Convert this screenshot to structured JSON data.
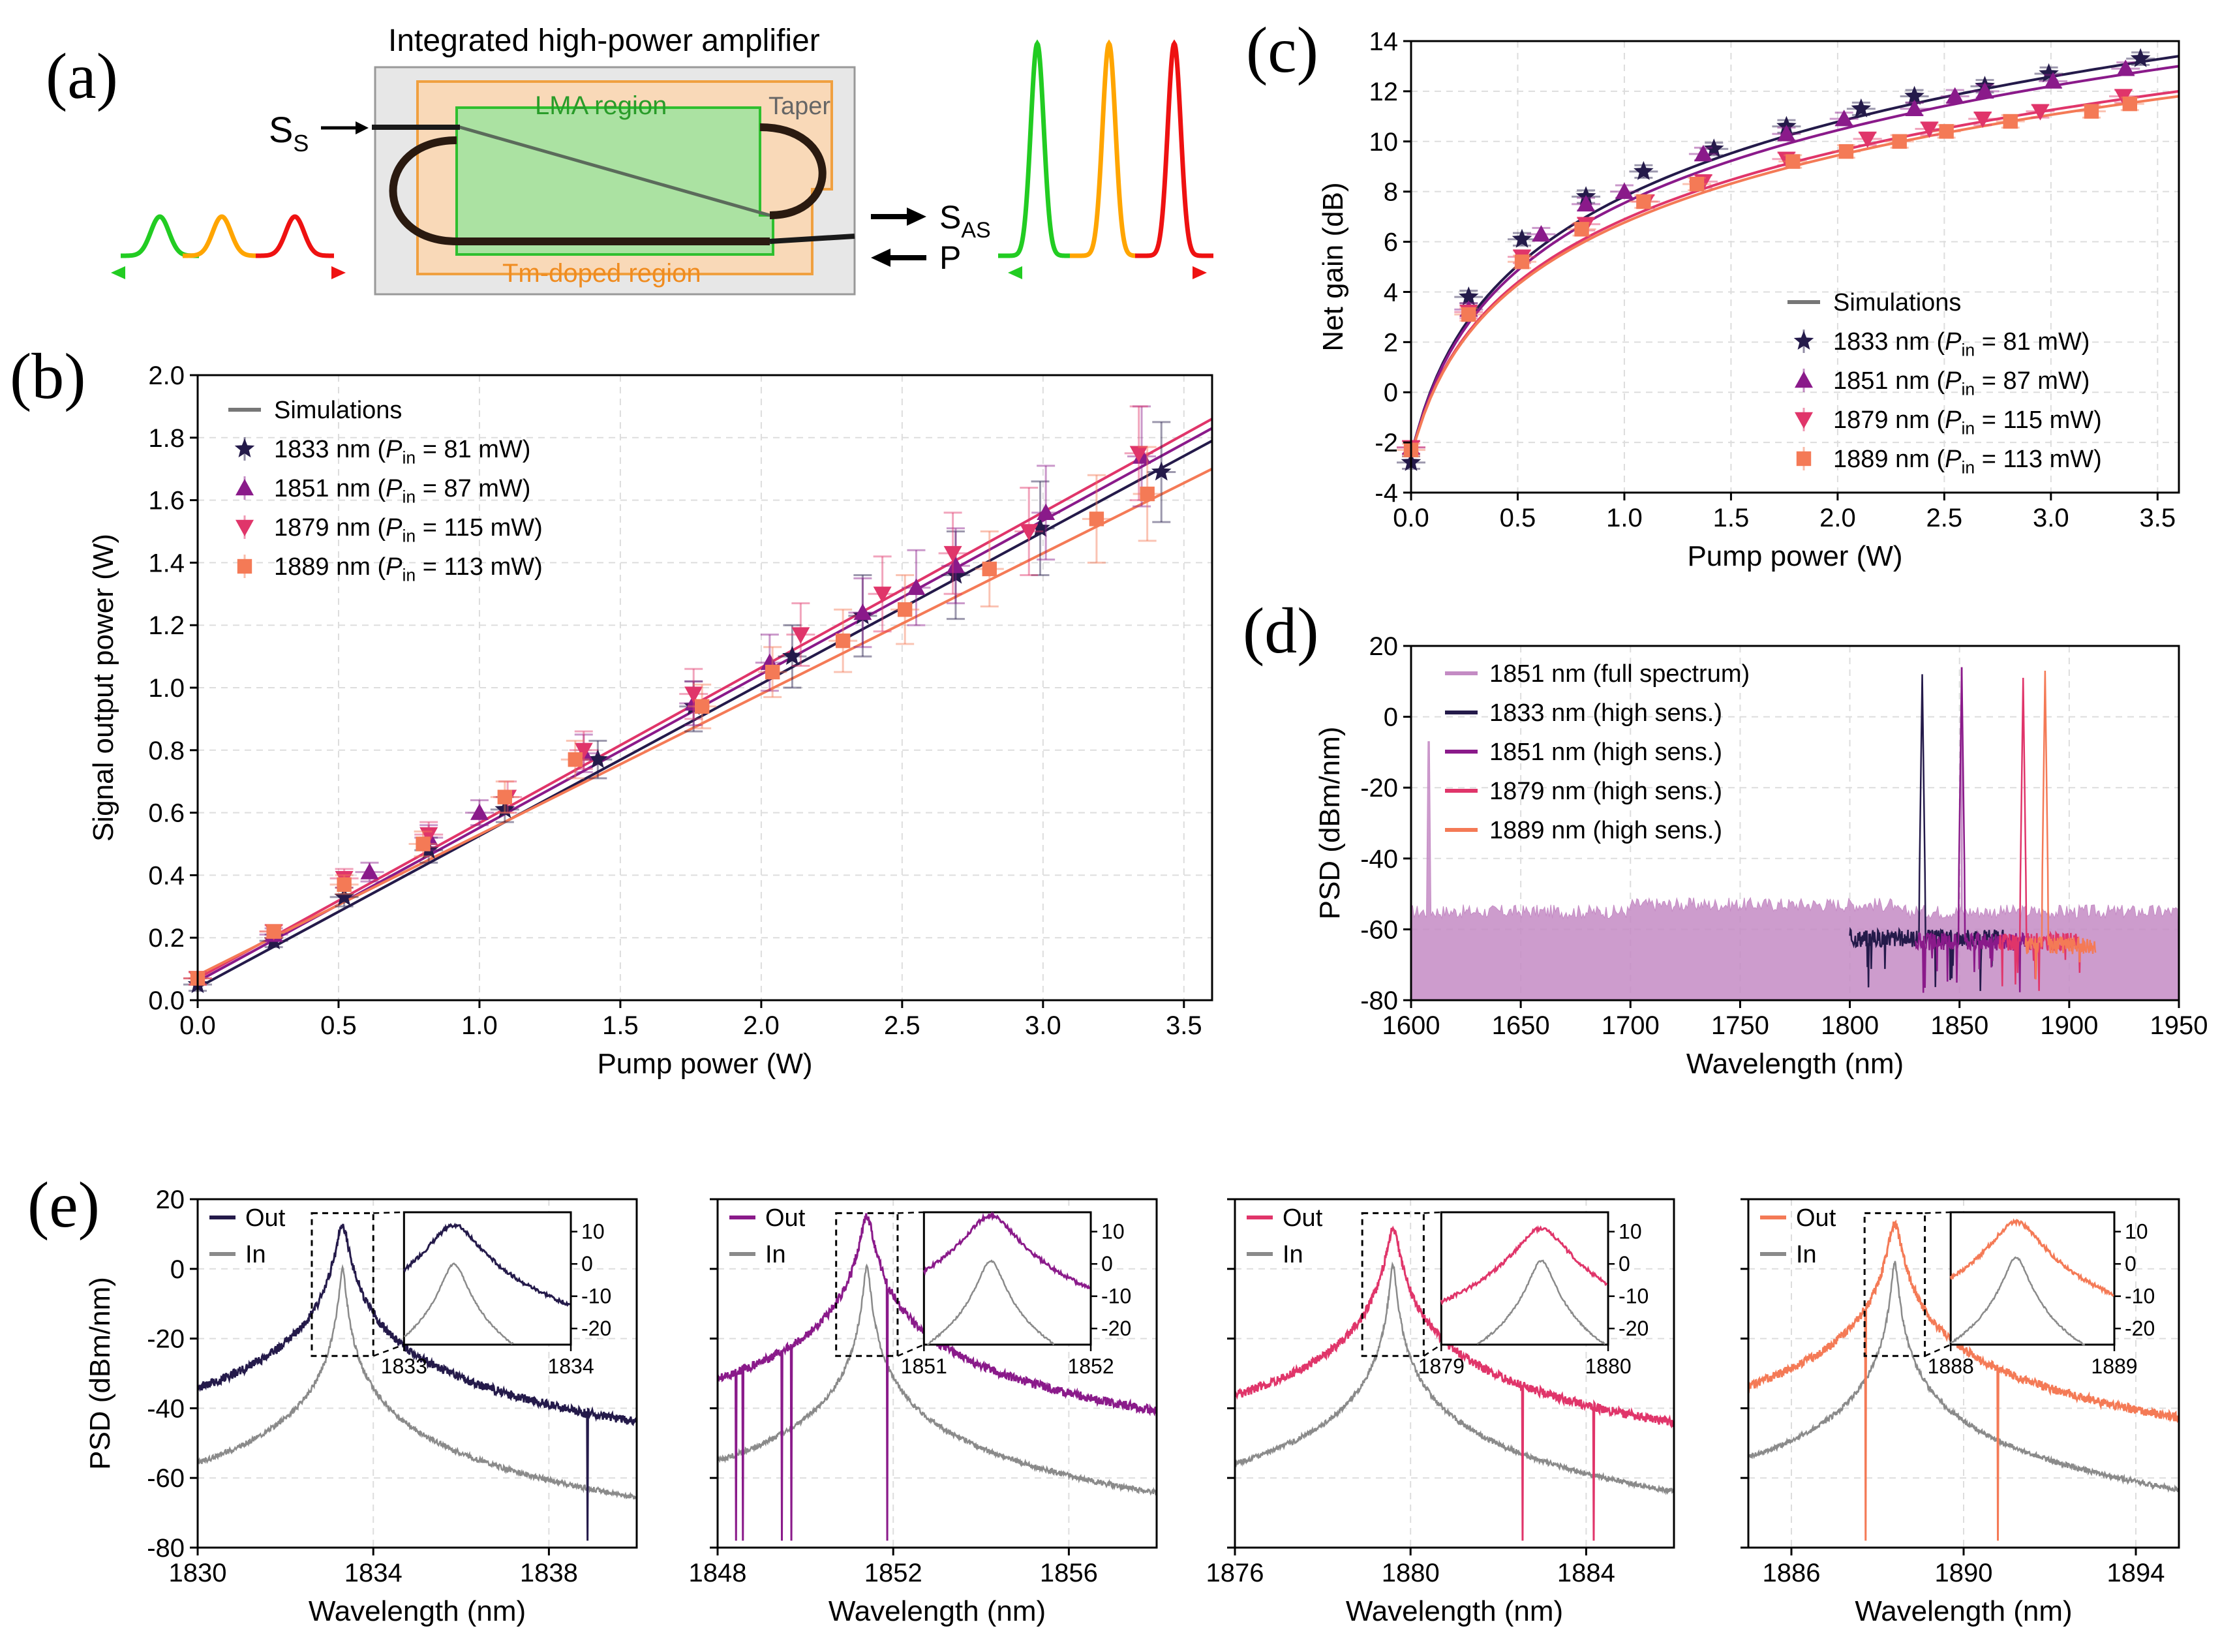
{
  "colors": {
    "c1833": "#241a4a",
    "c1851": "#8a1a8a",
    "c1879": "#e0356a",
    "c1889": "#f47a56",
    "sim": "#777777",
    "full": "#c48bc4",
    "input": "#8a8a8a",
    "green": "#22cc22",
    "orange": "#ffa500",
    "red": "#ee1111",
    "lma_fill": "#9ee39e",
    "lma_edge": "#2fbf2f",
    "tm_fill": "#f9d9b8",
    "tm_edge": "#f0a040",
    "chip_bg": "#e7e7e7"
  },
  "panel_a": {
    "letter": "(a)",
    "title": "Integrated high-power amplifier",
    "lma_label": "LMA region",
    "taper_label": "Taper",
    "tm_label": "Tm-doped region",
    "ss_main": "S",
    "ss_sub": "S",
    "sas_main": "S",
    "sas_sub": "AS",
    "p_label": "P"
  },
  "legend_entries": [
    {
      "main": "1833 nm (",
      "pin": "P",
      "sub": "in",
      "rest": " = 81 mW)"
    },
    {
      "main": "1851 nm (",
      "pin": "P",
      "sub": "in",
      "rest": " = 87 mW)"
    },
    {
      "main": "1879 nm (",
      "pin": "P",
      "sub": "in",
      "rest": " = 115 mW)"
    },
    {
      "main": "1889 nm (",
      "pin": "P",
      "sub": "in",
      "rest": " = 113 mW)"
    }
  ],
  "sim_label": "Simulations",
  "chart_data": [
    {
      "panel": "b",
      "letter": "(b)",
      "type": "scatter",
      "xlabel": "Pump power (W)",
      "ylabel": "Signal output power (W)",
      "xlim": [
        0,
        3.6
      ],
      "ylim": [
        0,
        2.0
      ],
      "xticks": [
        "0.0",
        "0.5",
        "1.0",
        "1.5",
        "2.0",
        "2.5",
        "3.0",
        "3.5"
      ],
      "yticks": [
        "0.0",
        "0.2",
        "0.4",
        "0.6",
        "0.8",
        "1.0",
        "1.2",
        "1.4",
        "1.6",
        "1.8",
        "2.0"
      ],
      "series": [
        {
          "name": "1833 nm",
          "x": [
            0.0,
            0.27,
            0.52,
            0.82,
            1.09,
            1.42,
            1.76,
            2.11,
            2.36,
            2.69,
            2.99,
            3.42
          ],
          "y": [
            0.05,
            0.19,
            0.33,
            0.48,
            0.61,
            0.77,
            0.94,
            1.1,
            1.23,
            1.36,
            1.51,
            1.69
          ],
          "err": [
            0.02,
            0.02,
            0.03,
            0.04,
            0.04,
            0.06,
            0.08,
            0.1,
            0.13,
            0.14,
            0.15,
            0.16
          ],
          "sim_y": [
            0.04,
            1.79
          ]
        },
        {
          "name": "1851 nm",
          "x": [
            0.0,
            0.27,
            0.61,
            0.82,
            1.0,
            1.37,
            1.76,
            2.03,
            2.36,
            2.55,
            2.69,
            3.01,
            3.35
          ],
          "y": [
            0.07,
            0.21,
            0.41,
            0.52,
            0.6,
            0.79,
            0.95,
            1.08,
            1.24,
            1.32,
            1.39,
            1.56,
            1.74
          ],
          "err": [
            0.02,
            0.02,
            0.03,
            0.04,
            0.04,
            0.06,
            0.07,
            0.09,
            0.11,
            0.12,
            0.12,
            0.15,
            0.16
          ],
          "sim_y": [
            0.06,
            1.83
          ]
        },
        {
          "name": "1879 nm",
          "x": [
            0.0,
            0.27,
            0.52,
            0.82,
            1.1,
            1.37,
            1.76,
            2.14,
            2.43,
            2.68,
            2.95,
            3.34
          ],
          "y": [
            0.07,
            0.22,
            0.39,
            0.53,
            0.65,
            0.8,
            0.98,
            1.17,
            1.3,
            1.43,
            1.5,
            1.75
          ],
          "err": [
            0.02,
            0.02,
            0.03,
            0.04,
            0.05,
            0.06,
            0.08,
            0.1,
            0.12,
            0.13,
            0.14,
            0.15
          ],
          "sim_y": [
            0.07,
            1.86
          ]
        },
        {
          "name": "1889 nm",
          "x": [
            0.0,
            0.27,
            0.52,
            0.8,
            1.09,
            1.34,
            1.79,
            2.04,
            2.29,
            2.51,
            2.81,
            3.19,
            3.37
          ],
          "y": [
            0.07,
            0.22,
            0.37,
            0.5,
            0.65,
            0.77,
            0.94,
            1.05,
            1.15,
            1.25,
            1.38,
            1.54,
            1.62
          ],
          "err": [
            0.02,
            0.02,
            0.03,
            0.04,
            0.05,
            0.06,
            0.07,
            0.08,
            0.1,
            0.11,
            0.12,
            0.14,
            0.15
          ],
          "sim_y": [
            0.08,
            1.7
          ]
        }
      ]
    },
    {
      "panel": "c",
      "letter": "(c)",
      "type": "scatter",
      "xlabel": "Pump power (W)",
      "ylabel": "Net gain (dB)",
      "xlim": [
        0,
        3.6
      ],
      "ylim": [
        -4,
        14
      ],
      "xticks": [
        "0.0",
        "0.5",
        "1.0",
        "1.5",
        "2.0",
        "2.5",
        "3.0",
        "3.5"
      ],
      "yticks": [
        "-4",
        "-2",
        "0",
        "2",
        "4",
        "6",
        "8",
        "10",
        "12",
        "14"
      ],
      "series": [
        {
          "name": "1833 nm",
          "x": [
            0.0,
            0.27,
            0.52,
            0.82,
            1.09,
            1.42,
            1.76,
            2.11,
            2.36,
            2.69,
            2.99,
            3.42
          ],
          "y": [
            -2.8,
            3.8,
            6.1,
            7.8,
            8.8,
            9.7,
            10.6,
            11.3,
            11.8,
            12.2,
            12.7,
            13.3
          ],
          "sim_end": 13.4
        },
        {
          "name": "1851 nm",
          "x": [
            0.0,
            0.27,
            0.61,
            0.82,
            1.0,
            1.37,
            1.76,
            2.03,
            2.36,
            2.55,
            2.69,
            3.01,
            3.35
          ],
          "y": [
            -2.2,
            3.3,
            6.3,
            7.5,
            8.0,
            9.5,
            10.3,
            10.9,
            11.3,
            11.8,
            12.0,
            12.4,
            12.9
          ],
          "sim_end": 13.0
        },
        {
          "name": "1879 nm",
          "x": [
            0.0,
            0.27,
            0.52,
            0.82,
            1.1,
            1.37,
            1.76,
            2.14,
            2.43,
            2.68,
            2.95,
            3.34
          ],
          "y": [
            -2.2,
            3.2,
            5.4,
            6.7,
            7.6,
            8.4,
            9.3,
            10.1,
            10.5,
            10.9,
            11.2,
            11.8
          ],
          "sim_end": 12.0
        },
        {
          "name": "1889 nm",
          "x": [
            0.0,
            0.27,
            0.52,
            0.8,
            1.09,
            1.34,
            1.79,
            2.04,
            2.29,
            2.51,
            2.81,
            3.19,
            3.37
          ],
          "y": [
            -2.3,
            3.1,
            5.2,
            6.5,
            7.6,
            8.3,
            9.2,
            9.6,
            10.0,
            10.4,
            10.8,
            11.2,
            11.5
          ],
          "sim_end": 11.8
        }
      ]
    },
    {
      "panel": "d",
      "letter": "(d)",
      "type": "line",
      "xlabel": "Wavelength (nm)",
      "ylabel": "PSD (dBm/nm)",
      "xlim": [
        1600,
        1950
      ],
      "ylim": [
        -80,
        20
      ],
      "xticks": [
        "1600",
        "1650",
        "1700",
        "1750",
        "1800",
        "1850",
        "1900",
        "1950"
      ],
      "yticks": [
        "-80",
        "-60",
        "-40",
        "-20",
        "0",
        "20"
      ],
      "full_spectrum": {
        "name": "1851 nm (full spectrum)",
        "floor": -56,
        "spur_x": 1608,
        "spur_y": -7,
        "peak": 14
      },
      "series": [
        {
          "name": "1833 nm (high sens.)",
          "x_start": 1800,
          "x_end": 1870,
          "floor": -63,
          "peak_x": 1833,
          "peak": 12
        },
        {
          "name": "1851 nm (high sens.)",
          "x_start": 1830,
          "x_end": 1882,
          "floor": -64,
          "peak_x": 1851,
          "peak": 14
        },
        {
          "name": "1879 nm (high sens.)",
          "x_start": 1868,
          "x_end": 1905,
          "floor": -64,
          "peak_x": 1879,
          "peak": 11
        },
        {
          "name": "1889 nm (high sens.)",
          "x_start": 1880,
          "x_end": 1912,
          "floor": -65,
          "peak_x": 1889,
          "peak": 13
        }
      ]
    },
    {
      "panel": "e",
      "letter": "(e)",
      "type": "line",
      "xlabel": "Wavelength (nm)",
      "ylabel": "PSD (dBm/nm)",
      "ylim": [
        -80,
        20
      ],
      "yticks": [
        "-80",
        "-60",
        "-40",
        "-20",
        "0",
        "20"
      ],
      "out_label": "Out",
      "in_label": "In",
      "inset_yticks": [
        "10",
        "0",
        "-10",
        "-20"
      ],
      "subplots": [
        {
          "center": 1833.3,
          "xlim": [
            1830,
            1840
          ],
          "xticks": [
            "1830",
            "1834",
            "1838"
          ],
          "out_floor": -62,
          "in_floor": -72,
          "out_peak": 12,
          "in_peak": 0,
          "inset_xlim": [
            1833,
            1834
          ],
          "inset_xticks": [
            "1833",
            "1834"
          ],
          "inset_center": 1833.3
        },
        {
          "center": 1851.4,
          "xlim": [
            1848,
            1858
          ],
          "xticks": [
            "1848",
            "1852",
            "1856"
          ],
          "out_floor": -62,
          "in_floor": -72,
          "out_peak": 15,
          "in_peak": 1,
          "inset_xlim": [
            1851,
            1852
          ],
          "inset_xticks": [
            "1851",
            "1852"
          ],
          "inset_center": 1851.4
        },
        {
          "center": 1879.6,
          "xlim": [
            1876,
            1886
          ],
          "xticks": [
            "1876",
            "1880",
            "1884"
          ],
          "out_floor": -65,
          "in_floor": -72,
          "out_peak": 11,
          "in_peak": 1,
          "inset_xlim": [
            1879,
            1880
          ],
          "inset_xticks": [
            "1879",
            "1880"
          ],
          "inset_center": 1879.6
        },
        {
          "center": 1888.4,
          "xlim": [
            1885,
            1895
          ],
          "xticks": [
            "1886",
            "1890",
            "1894"
          ],
          "out_floor": -64,
          "in_floor": -72,
          "out_peak": 13,
          "in_peak": 2,
          "inset_xlim": [
            1888,
            1889
          ],
          "inset_xticks": [
            "1888",
            "1889"
          ],
          "inset_center": 1888.4
        }
      ]
    }
  ]
}
